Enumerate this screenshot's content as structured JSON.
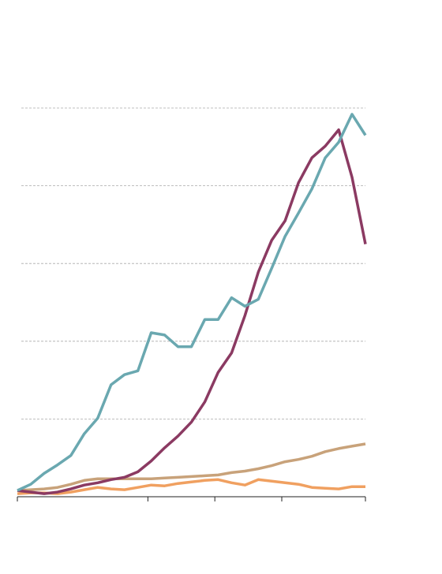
{
  "chart_data": {
    "type": "line",
    "x": [
      0,
      1,
      2,
      3,
      4,
      5,
      6,
      7,
      8,
      9,
      10,
      11,
      12,
      13,
      14,
      15,
      16,
      17,
      18,
      19,
      20,
      21,
      22,
      23,
      24,
      25,
      26
    ],
    "xlim": [
      0,
      26
    ],
    "xticks": [
      0,
      9.75,
      14.75,
      19.75,
      26
    ],
    "ylim": [
      0,
      5
    ],
    "yticks": [
      1,
      2,
      3,
      4,
      5
    ],
    "grid": true,
    "series": [
      {
        "color": "#c8a27a",
        "values": [
          0.08,
          0.09,
          0.1,
          0.12,
          0.16,
          0.21,
          0.23,
          0.23,
          0.23,
          0.23,
          0.23,
          0.24,
          0.25,
          0.26,
          0.27,
          0.28,
          0.31,
          0.33,
          0.36,
          0.4,
          0.45,
          0.48,
          0.52,
          0.58,
          0.62,
          0.65,
          0.68
        ]
      },
      {
        "color": "#f0a060",
        "values": [
          0.04,
          0.05,
          0.05,
          0.04,
          0.06,
          0.09,
          0.12,
          0.1,
          0.09,
          0.12,
          0.15,
          0.14,
          0.17,
          0.19,
          0.21,
          0.22,
          0.18,
          0.15,
          0.22,
          0.2,
          0.18,
          0.16,
          0.12,
          0.11,
          0.1,
          0.13,
          0.13
        ]
      },
      {
        "color": "#8b3a62",
        "values": [
          0.08,
          0.06,
          0.04,
          0.06,
          0.1,
          0.15,
          0.18,
          0.22,
          0.25,
          0.32,
          0.46,
          0.63,
          0.78,
          0.96,
          1.22,
          1.6,
          1.85,
          2.33,
          2.89,
          3.3,
          3.55,
          4.04,
          4.36,
          4.51,
          4.72,
          4.11,
          3.25
        ]
      },
      {
        "color": "#6aa8b0",
        "values": [
          0.08,
          0.16,
          0.3,
          0.41,
          0.53,
          0.81,
          1.01,
          1.44,
          1.57,
          1.62,
          2.11,
          2.08,
          1.93,
          1.93,
          2.28,
          2.28,
          2.56,
          2.45,
          2.54,
          2.94,
          3.35,
          3.65,
          3.96,
          4.36,
          4.56,
          4.92,
          4.65
        ]
      }
    ]
  }
}
